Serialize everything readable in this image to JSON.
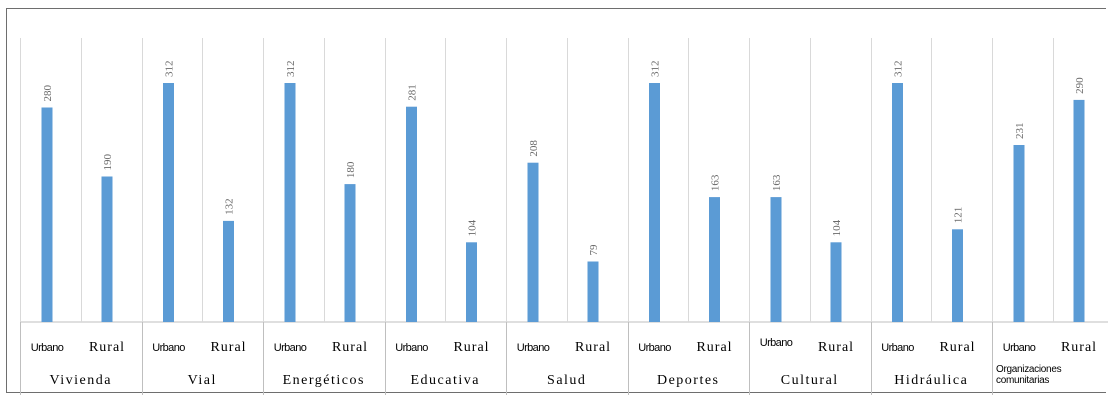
{
  "chart_data": {
    "type": "bar",
    "title": "",
    "xlabel": "",
    "ylabel": "",
    "ylim": [
      0,
      340
    ],
    "grid": false,
    "legend": "none",
    "bar_color": "#5b9bd5",
    "categories": [
      "Vivienda",
      "Vial",
      "Energéticos",
      "Educativa",
      "Salud",
      "Deportes",
      "Cultural",
      "Hidráulica",
      "Organizaciones comunitarias"
    ],
    "category_lines": [
      [
        "Vivienda"
      ],
      [
        "Vial"
      ],
      [
        "Energéticos"
      ],
      [
        "Educativa"
      ],
      [
        "Salud"
      ],
      [
        "Deportes"
      ],
      [
        "Cultural"
      ],
      [
        "Hidráulica"
      ],
      [
        "Organizaciones",
        "comunitarias"
      ]
    ],
    "sub_categories": [
      "Urbano",
      "Rural"
    ],
    "series": [
      {
        "values": [
          280,
          312,
          312,
          281,
          208,
          312,
          163,
          312,
          231
        ]
      },
      {
        "values": [
          190,
          132,
          180,
          104,
          79,
          163,
          104,
          121,
          290
        ]
      }
    ]
  }
}
